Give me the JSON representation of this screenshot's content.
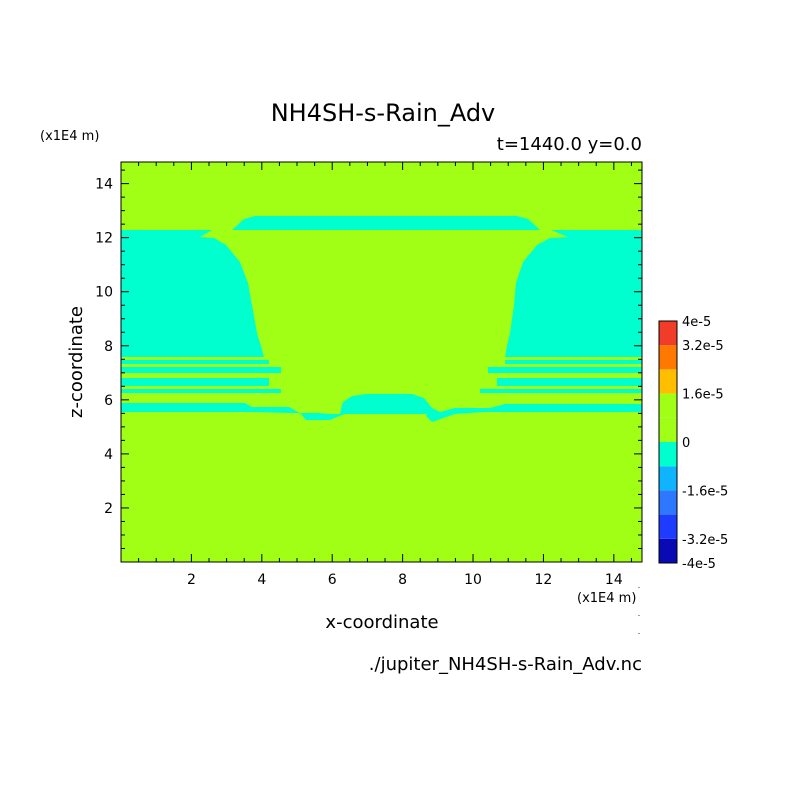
{
  "chart_data": {
    "type": "heatmap",
    "title": "NH4SH-s-Rain_Adv",
    "subtitle": "t=1440.0 y=0.0",
    "xlabel": "x-coordinate",
    "ylabel": "z-coordinate",
    "x_unit": "(x1E4 m)",
    "y_unit": "(x1E4 m)",
    "source_file": "./jupiter_NH4SH-s-Rain_Adv.nc",
    "xlim": [
      0,
      14.8
    ],
    "ylim": [
      0,
      14.8
    ],
    "x_ticks": [
      2,
      4,
      6,
      8,
      10,
      12,
      14
    ],
    "y_ticks": [
      2,
      4,
      6,
      8,
      10,
      12,
      14
    ],
    "x_tick_labels": [
      "2",
      "4",
      "6",
      "8",
      "10",
      "12",
      "14"
    ],
    "y_tick_labels": [
      "2",
      "4",
      "6",
      "8",
      "10",
      "12",
      "14"
    ],
    "background_value": 0,
    "colorbar": {
      "range": [
        -4e-05,
        4e-05
      ],
      "labels": [
        {
          "value": 4e-05,
          "text": "4e-5"
        },
        {
          "value": 3.2e-05,
          "text": "3.2e-5"
        },
        {
          "value": 1.6e-05,
          "text": "1.6e-5"
        },
        {
          "value": 0,
          "text": "0"
        },
        {
          "value": -1.6e-05,
          "text": "-1.6e-5"
        },
        {
          "value": -3.2e-05,
          "text": "-3.2e-5"
        },
        {
          "value": -4e-05,
          "text": "-4e-5"
        }
      ],
      "bands": [
        {
          "min": -4e-05,
          "max": -3.2e-05,
          "color": "#0a0ab4"
        },
        {
          "min": -3.2e-05,
          "max": -2.4e-05,
          "color": "#1e3cff"
        },
        {
          "min": -2.4e-05,
          "max": -1.6e-05,
          "color": "#2d78ff"
        },
        {
          "min": -1.6e-05,
          "max": -8e-06,
          "color": "#0fb4ff"
        },
        {
          "min": -8e-06,
          "max": 0,
          "color": "#00ffce"
        },
        {
          "min": 0,
          "max": 8e-06,
          "color": "#a0ff14"
        },
        {
          "min": 8e-06,
          "max": 1.6e-05,
          "color": "#a0ff14"
        },
        {
          "min": 1.6e-05,
          "max": 2.4e-05,
          "color": "#ffbe00"
        },
        {
          "min": 2.4e-05,
          "max": 3.2e-05,
          "color": "#ff7800"
        },
        {
          "min": 3.2e-05,
          "max": 4e-05,
          "color": "#f03c28"
        }
      ]
    },
    "colors": {
      "zero": "#a0ff14",
      "negative_small": "#00ffce"
    }
  }
}
